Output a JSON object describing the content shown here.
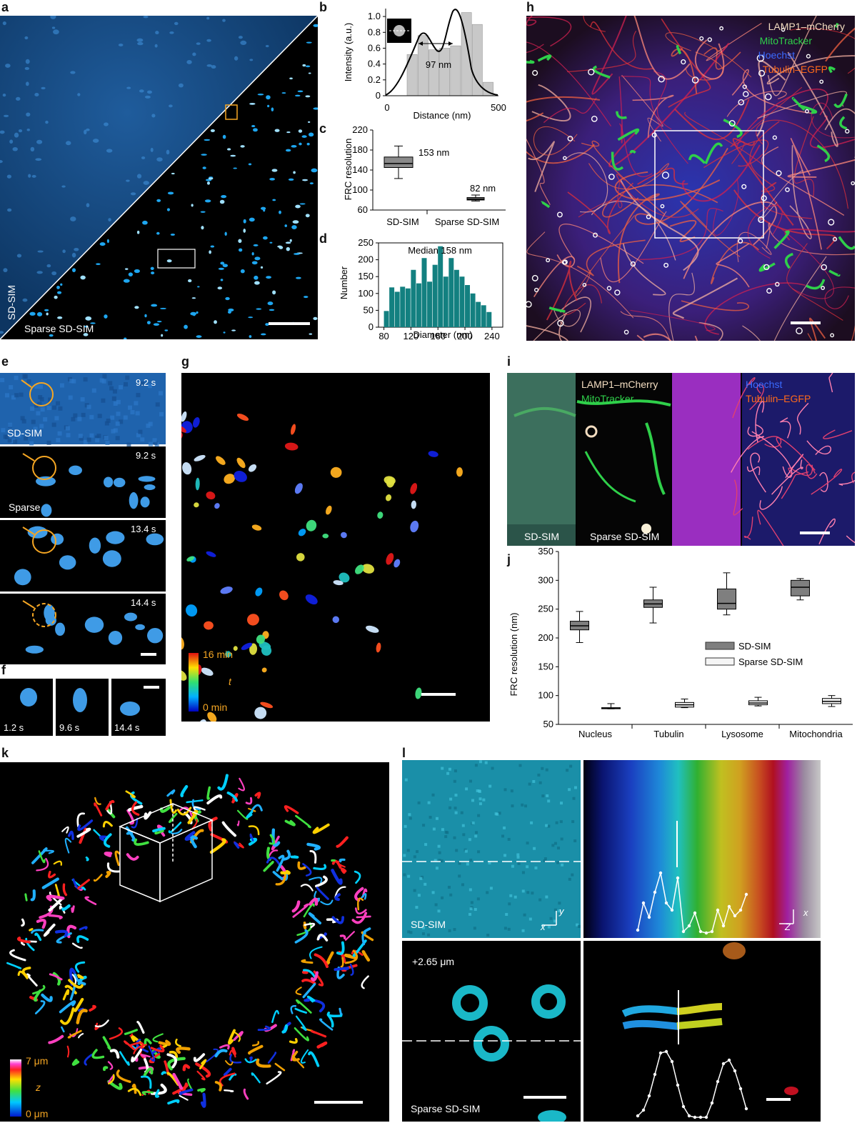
{
  "panel_letters": {
    "a": "a",
    "b": "b",
    "c": "c",
    "d": "d",
    "e": "e",
    "f": "f",
    "g": "g",
    "h": "h",
    "i": "i",
    "j": "j",
    "k": "k",
    "l": "l"
  },
  "panel_a": {
    "label_sdsim": "SD-SIM",
    "label_sparse": "Sparse SD-SIM"
  },
  "panel_b": {
    "ylabel": "Intensity (a.u.)",
    "xlabel": "Distance (nm)",
    "annotation": "97 nm",
    "yticks": [
      "0",
      "0.2",
      "0.4",
      "0.6",
      "0.8",
      "1.0"
    ],
    "xticks": [
      "0",
      "500"
    ]
  },
  "panel_c": {
    "ylabel": "FRC resolution",
    "yticks": [
      "60",
      "100",
      "140",
      "180",
      "220"
    ],
    "categories": [
      "SD-SIM",
      "Sparse SD-SIM"
    ],
    "ann1": "153 nm",
    "ann2": "82 nm"
  },
  "panel_d": {
    "ylabel": "Number",
    "xlabel": "Diameter (nm)",
    "annotation": "Median 158 nm",
    "yticks": [
      "0",
      "50",
      "100",
      "150",
      "200",
      "250"
    ],
    "xticks": [
      "80",
      "120",
      "160",
      "200",
      "240"
    ]
  },
  "panel_e": {
    "times": [
      "9.2 s",
      "9.2 s",
      "13.4 s",
      "14.4 s"
    ],
    "label_sdsim": "SD-SIM",
    "label_sparse": "Sparse"
  },
  "panel_f": {
    "times": [
      "1.2 s",
      "9.6 s",
      "14.4 s"
    ]
  },
  "panel_g": {
    "cbar_top": "16 min",
    "cbar_mid": "t",
    "cbar_bottom": "0 min"
  },
  "panel_h": {
    "legend": [
      "LAMP1–mCherry",
      "MitoTracker",
      "Hoechst",
      "Tubulin–EGFP"
    ],
    "legend_colors": [
      "#f2dcc0",
      "#2fd04a",
      "#2d5cff",
      "#ff6a1a"
    ]
  },
  "panel_i": {
    "legend1": "LAMP1–mCherry",
    "legend2": "MitoTracker",
    "legend3": "Hoechst",
    "legend4": "Tubulin–EGFP",
    "label_sdsim": "SD-SIM",
    "label_sparse": "Sparse SD-SIM"
  },
  "panel_j": {
    "ylabel": "FRC resolution (nm)",
    "yticks": [
      "50",
      "100",
      "150",
      "200",
      "250",
      "300",
      "350"
    ],
    "categories": [
      "Nucleus",
      "Tubulin",
      "Lysosome",
      "Mitochondria"
    ],
    "legend": [
      "SD-SIM",
      "Sparse SD-SIM"
    ]
  },
  "panel_k": {
    "cbar_top": "7 μm",
    "cbar_mid": "z",
    "cbar_bottom": "0 μm"
  },
  "panel_l": {
    "label_sdsim": "SD-SIM",
    "label_sparse": "Sparse SD-SIM",
    "depth": "+2.65 μm",
    "axis_y": "y",
    "axis_x": "x",
    "axis_x2": "x",
    "axis_z": "Z"
  },
  "chart_data": [
    {
      "type": "bar",
      "panel": "b",
      "categories": [
        "1",
        "2",
        "3",
        "4",
        "5",
        "6",
        "7",
        "8"
      ],
      "values": [
        0.52,
        0.76,
        0.58,
        0.6,
        0.63,
        1.05,
        0.9,
        0.17
      ],
      "xlabel": "Distance (nm)",
      "ylabel": "Intensity (a.u.)",
      "ylim": [
        0,
        1.1
      ],
      "xlim": [
        0,
        500
      ]
    },
    {
      "type": "box",
      "panel": "c",
      "categories": [
        "SD-SIM",
        "Sparse SD-SIM"
      ],
      "boxes": [
        {
          "min": 123,
          "q1": 145,
          "median": 153,
          "q3": 166,
          "max": 188
        },
        {
          "min": 78,
          "q1": 80,
          "median": 82,
          "q3": 85,
          "max": 90
        }
      ],
      "ylabel": "FRC resolution",
      "ylim": [
        60,
        220
      ]
    },
    {
      "type": "bar",
      "panel": "d",
      "bin_start": 80,
      "bin_width": 8,
      "values": [
        48,
        118,
        105,
        120,
        115,
        170,
        130,
        205,
        135,
        185,
        240,
        150,
        205,
        170,
        150,
        125,
        100,
        75,
        65,
        45
      ],
      "xlabel": "Diameter (nm)",
      "ylabel": "Number",
      "ylim": [
        0,
        250
      ]
    },
    {
      "type": "box",
      "panel": "j",
      "categories": [
        "Nucleus",
        "Tubulin",
        "Lysosome",
        "Mitochondria"
      ],
      "series": [
        {
          "name": "SD-SIM",
          "boxes": [
            {
              "min": 192,
              "q1": 214,
              "median": 221,
              "q3": 229,
              "max": 246
            },
            {
              "min": 226,
              "q1": 253,
              "median": 259,
              "q3": 266,
              "max": 288
            },
            {
              "min": 240,
              "q1": 250,
              "median": 260,
              "q3": 285,
              "max": 313
            },
            {
              "min": 266,
              "q1": 273,
              "median": 288,
              "q3": 300,
              "max": 303
            }
          ]
        },
        {
          "name": "Sparse SD-SIM",
          "boxes": [
            {
              "min": 77,
              "q1": 78,
              "median": 78,
              "q3": 79,
              "max": 86
            },
            {
              "min": 79,
              "q1": 80,
              "median": 84,
              "q3": 88,
              "max": 94
            },
            {
              "min": 82,
              "q1": 84,
              "median": 87,
              "q3": 91,
              "max": 97
            },
            {
              "min": 81,
              "q1": 86,
              "median": 90,
              "q3": 95,
              "max": 100
            }
          ]
        }
      ],
      "ylabel": "FRC resolution (nm)",
      "ylim": [
        50,
        350
      ]
    }
  ]
}
